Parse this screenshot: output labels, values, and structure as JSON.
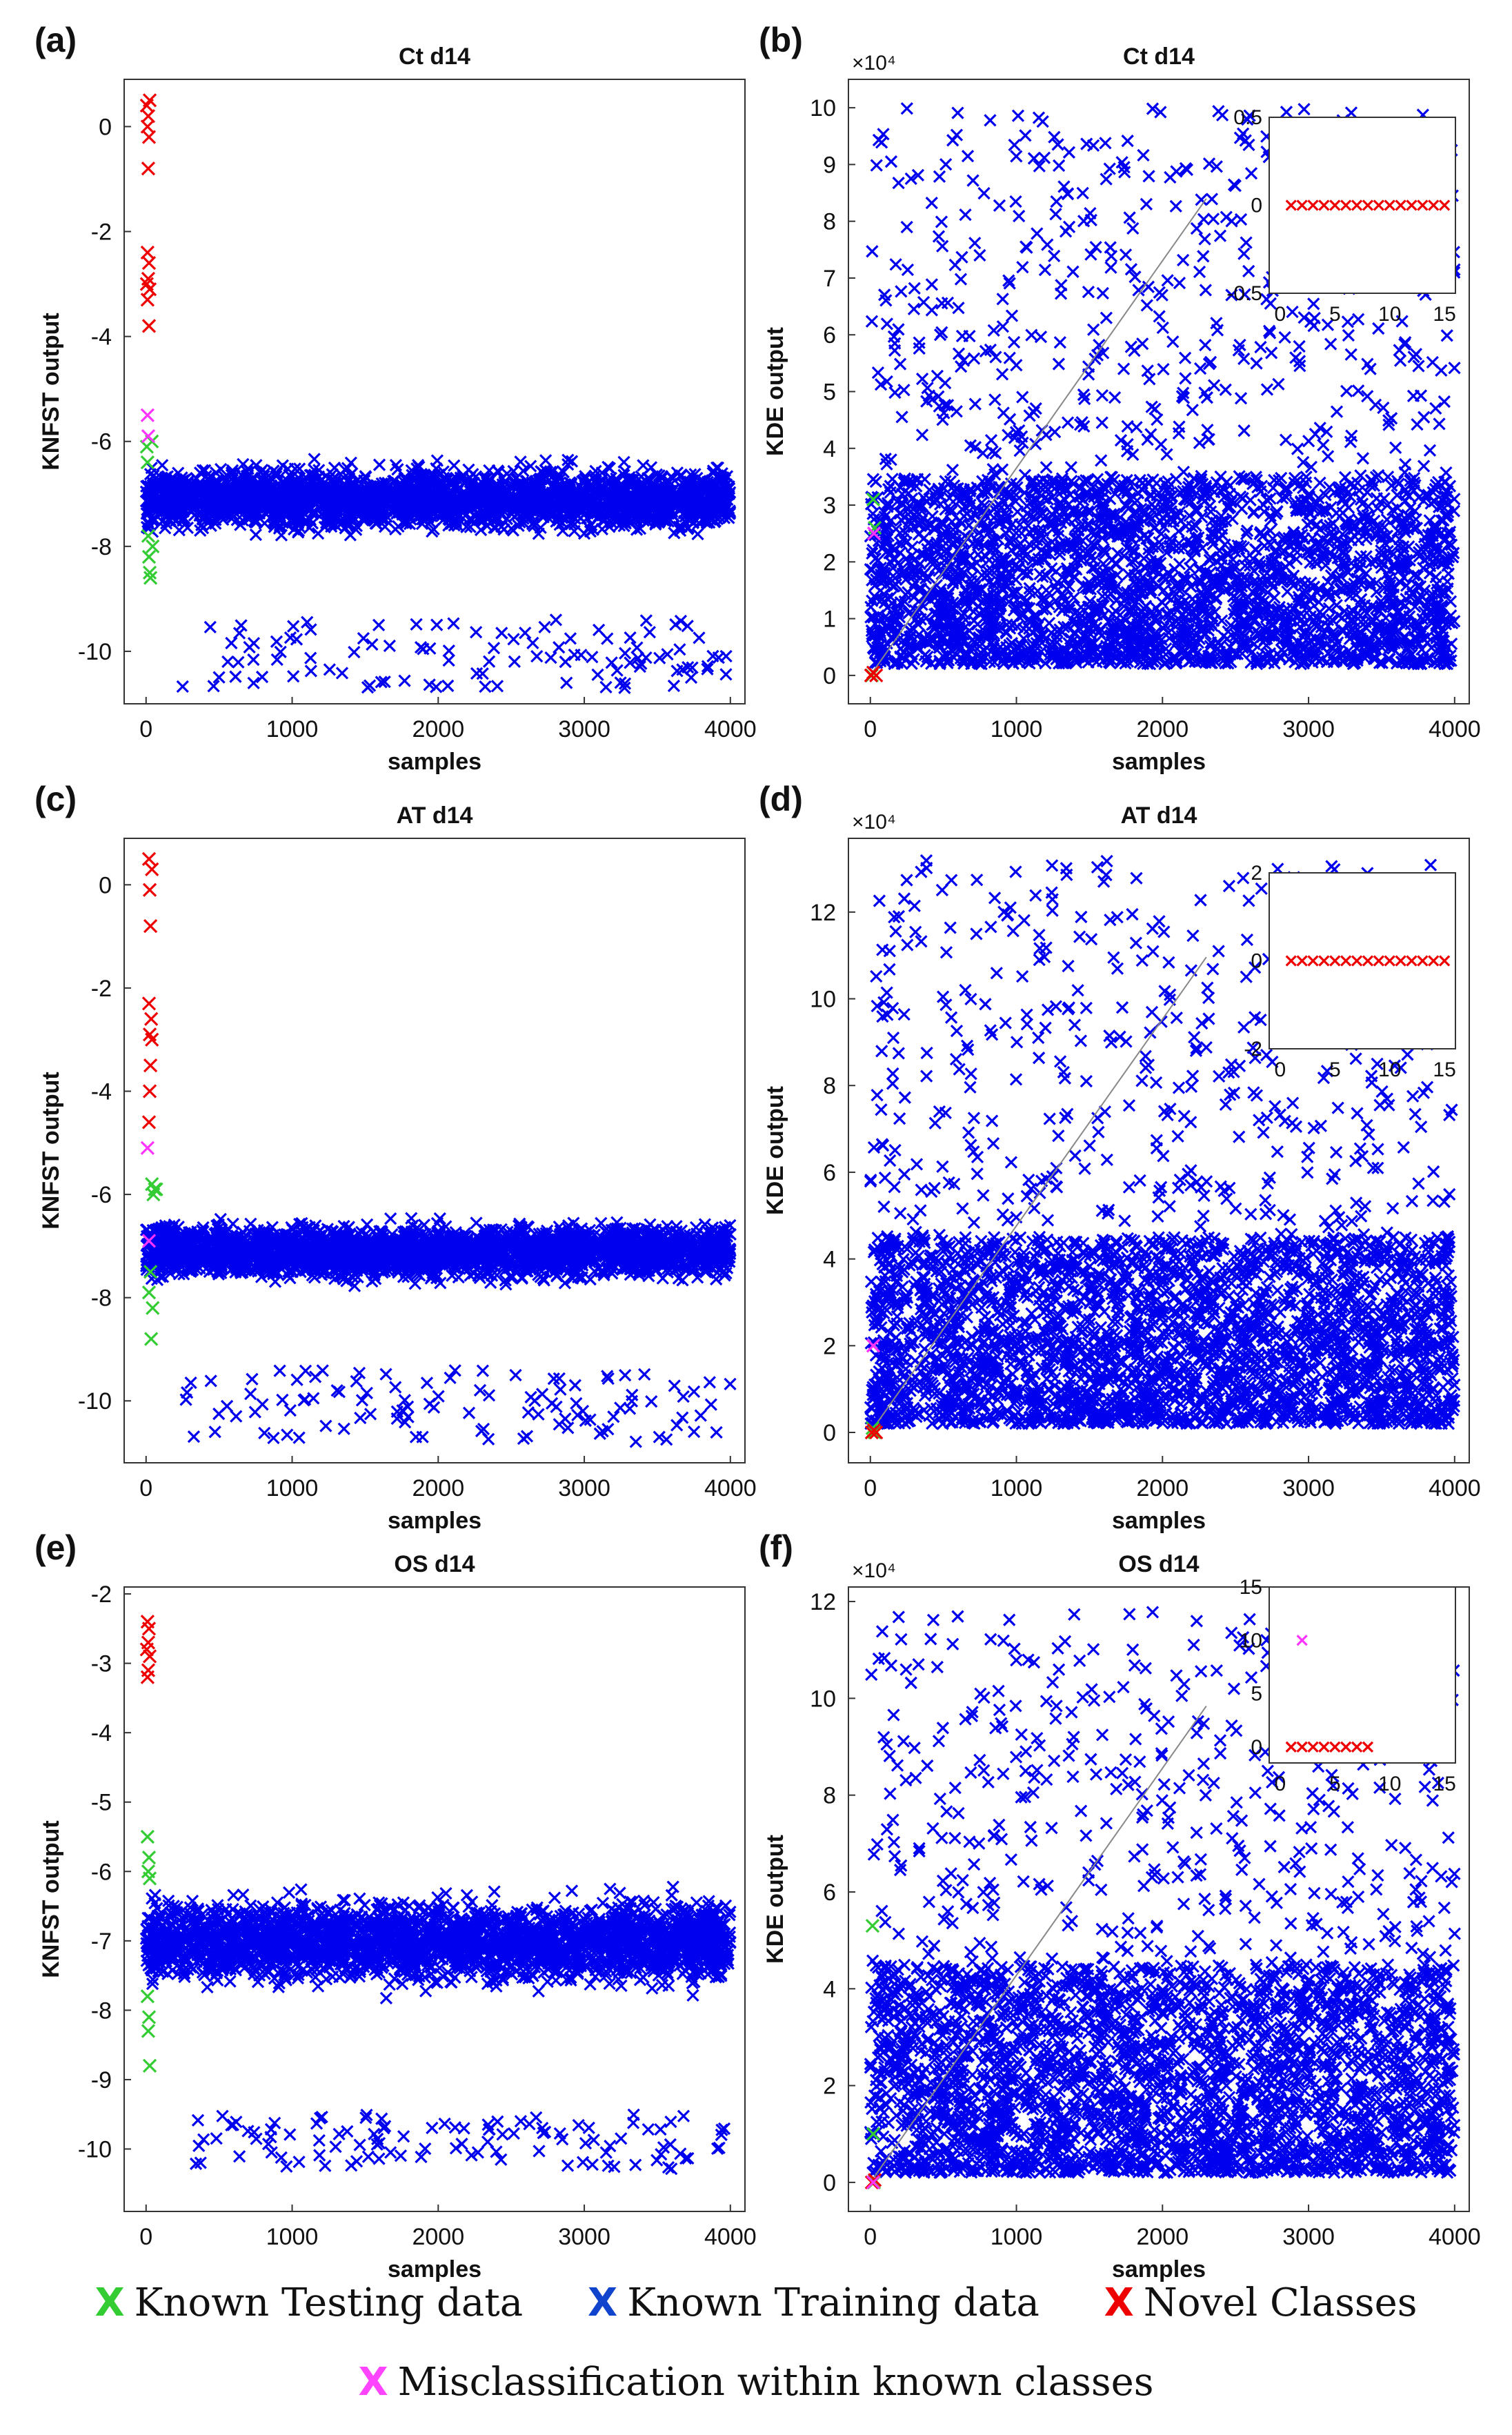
{
  "colors": {
    "known_testing": "#33cc33",
    "known_training": "#0000ee",
    "novel": "#ee0000",
    "misclass": "#ff33ff"
  },
  "legend": {
    "marker": "X",
    "known_testing": "Known Testing data",
    "known_training": "Known Training data",
    "novel": "Novel Classes",
    "misclass": "Misclassification within known classes"
  },
  "chart_data": [
    {
      "panel": "(a)",
      "type": "scatter",
      "title": "Ct d14",
      "xlabel": "samples",
      "ylabel": "KNFST output",
      "xlim": [
        -150,
        4100
      ],
      "ylim": [
        -11,
        0.9
      ],
      "xticks": [
        "0",
        "1000",
        "2000",
        "3000",
        "4000"
      ],
      "yticks": [
        "-10",
        "-8",
        "-6",
        "-4",
        "-2",
        "0"
      ],
      "series": [
        {
          "name": "Known Training data",
          "x_range": [
            0,
            4000
          ],
          "band": [
            -8.0,
            -6.0
          ],
          "center": -7.1,
          "outliers_range": [
            -10.7,
            -9.4
          ]
        },
        {
          "name": "Known Testing data",
          "points": [
            [
              5,
              -6.1
            ],
            [
              10,
              -6.4
            ],
            [
              15,
              -7.8
            ],
            [
              20,
              -8.2
            ],
            [
              25,
              -8.5
            ],
            [
              30,
              -8.6
            ],
            [
              40,
              -6.0
            ],
            [
              45,
              -8.0
            ]
          ]
        },
        {
          "name": "Novel Classes",
          "points": [
            [
              5,
              0.4
            ],
            [
              15,
              0.2
            ],
            [
              25,
              0.5
            ],
            [
              10,
              0.0
            ],
            [
              20,
              -0.2
            ],
            [
              15,
              -0.8
            ],
            [
              10,
              -2.4
            ],
            [
              20,
              -2.6
            ],
            [
              15,
              -2.9
            ],
            [
              5,
              -3.0
            ],
            [
              25,
              -3.1
            ],
            [
              10,
              -3.3
            ],
            [
              20,
              -3.8
            ]
          ]
        },
        {
          "name": "Misclassification within known classes",
          "points": [
            [
              10,
              -5.5
            ],
            [
              15,
              -5.9
            ]
          ]
        }
      ]
    },
    {
      "panel": "(b)",
      "type": "scatter",
      "title": "Ct d14",
      "xlabel": "samples",
      "ylabel": "KDE output",
      "exponent": "×10⁴",
      "xlim": [
        -150,
        4100
      ],
      "ylim": [
        -0.5,
        10.5
      ],
      "xticks": [
        "0",
        "1000",
        "2000",
        "3000",
        "4000"
      ],
      "yticks": [
        "0",
        "1",
        "2",
        "3",
        "4",
        "5",
        "6",
        "7",
        "8",
        "9",
        "10"
      ],
      "series": [
        {
          "name": "Known Training data",
          "x_range": [
            0,
            4000
          ],
          "y_range": [
            0.2,
            10
          ],
          "density_max_below": 3.5
        },
        {
          "name": "Known Testing data",
          "points": [
            [
              10,
              0.0
            ],
            [
              20,
              3.1
            ],
            [
              30,
              2.6
            ]
          ]
        },
        {
          "name": "Novel Classes",
          "points": [
            [
              5,
              0.0
            ],
            [
              20,
              0.05
            ],
            [
              40,
              0.0
            ]
          ]
        },
        {
          "name": "Misclassification within known classes",
          "points": [
            [
              25,
              2.5
            ]
          ]
        }
      ],
      "inset": {
        "xlim": [
          -1,
          16
        ],
        "ylim": [
          -0.5,
          0.5
        ],
        "xticks": [
          "0",
          "5",
          "10",
          "15"
        ],
        "yticks": [
          "-0.5",
          "0",
          "0.5"
        ],
        "novel_points_x": [
          1,
          2,
          3,
          4,
          5,
          6,
          7,
          8,
          9,
          10,
          11,
          12,
          13,
          14,
          15
        ],
        "novel_points_y": 0
      }
    },
    {
      "panel": "(c)",
      "type": "scatter",
      "title": "AT d14",
      "xlabel": "samples",
      "ylabel": "KNFST output",
      "xlim": [
        -150,
        4100
      ],
      "ylim": [
        -11.2,
        0.9
      ],
      "xticks": [
        "0",
        "1000",
        "2000",
        "3000",
        "4000"
      ],
      "yticks": [
        "-10",
        "-8",
        "-6",
        "-4",
        "-2",
        "0"
      ],
      "series": [
        {
          "name": "Known Training data",
          "x_range": [
            0,
            4000
          ],
          "band": [
            -7.9,
            -6.1
          ],
          "center": -7.1,
          "outliers_range": [
            -10.8,
            -9.4
          ]
        },
        {
          "name": "Known Testing data",
          "points": [
            [
              40,
              -5.8
            ],
            [
              50,
              -6.0
            ],
            [
              60,
              -5.9
            ],
            [
              30,
              -7.5
            ],
            [
              20,
              -7.9
            ],
            [
              35,
              -8.8
            ],
            [
              45,
              -8.2
            ],
            [
              70,
              -5.9
            ]
          ]
        },
        {
          "name": "Novel Classes",
          "points": [
            [
              20,
              0.5
            ],
            [
              40,
              0.3
            ],
            [
              25,
              -0.1
            ],
            [
              30,
              -0.8
            ],
            [
              20,
              -2.3
            ],
            [
              35,
              -2.6
            ],
            [
              25,
              -2.9
            ],
            [
              40,
              -3.0
            ],
            [
              30,
              -3.5
            ],
            [
              25,
              -4.0
            ],
            [
              20,
              -4.6
            ]
          ]
        },
        {
          "name": "Misclassification within known classes",
          "points": [
            [
              10,
              -5.1
            ],
            [
              20,
              -6.9
            ]
          ]
        }
      ]
    },
    {
      "panel": "(d)",
      "type": "scatter",
      "title": "AT d14",
      "xlabel": "samples",
      "ylabel": "KDE output",
      "exponent": "×10⁴",
      "xlim": [
        -150,
        4100
      ],
      "ylim": [
        -0.7,
        13.7
      ],
      "xticks": [
        "0",
        "1000",
        "2000",
        "3000",
        "4000"
      ],
      "yticks": [
        "0",
        "2",
        "4",
        "6",
        "8",
        "10",
        "12"
      ],
      "series": [
        {
          "name": "Known Training data",
          "x_range": [
            0,
            4000
          ],
          "y_range": [
            0.2,
            13.2
          ],
          "density_max_below": 4.5
        },
        {
          "name": "Known Testing data",
          "points": [
            [
              15,
              0.1
            ],
            [
              30,
              0.0
            ]
          ]
        },
        {
          "name": "Novel Classes",
          "points": [
            [
              10,
              0.0
            ],
            [
              25,
              0.05
            ],
            [
              40,
              0.0
            ]
          ]
        },
        {
          "name": "Misclassification within known classes",
          "points": [
            [
              20,
              2.0
            ]
          ]
        }
      ],
      "inset": {
        "xlim": [
          -1,
          16
        ],
        "ylim": [
          -2,
          2
        ],
        "xticks": [
          "0",
          "5",
          "10",
          "15"
        ],
        "yticks": [
          "-2",
          "0",
          "2"
        ],
        "novel_points_x": [
          1,
          2,
          3,
          4,
          5,
          6,
          7,
          8,
          9,
          10,
          11,
          12,
          13,
          14,
          15
        ],
        "novel_points_y": 0
      }
    },
    {
      "panel": "(e)",
      "type": "scatter",
      "title": "OS d14",
      "xlabel": "samples",
      "ylabel": "KNFST output",
      "xlim": [
        -150,
        4100
      ],
      "ylim": [
        -10.9,
        -1.9
      ],
      "xticks": [
        "0",
        "1000",
        "2000",
        "3000",
        "4000"
      ],
      "yticks": [
        "-10",
        "-9",
        "-8",
        "-7",
        "-6",
        "-5",
        "-4",
        "-3",
        "-2"
      ],
      "series": [
        {
          "name": "Known Training data",
          "x_range": [
            0,
            4000
          ],
          "band": [
            -8.0,
            -6.0
          ],
          "center": -7.0,
          "outliers_range": [
            -10.3,
            -9.5
          ]
        },
        {
          "name": "Known Testing data",
          "points": [
            [
              10,
              -5.5
            ],
            [
              20,
              -5.8
            ],
            [
              15,
              -6.0
            ],
            [
              25,
              -6.1
            ],
            [
              10,
              -7.8
            ],
            [
              20,
              -8.1
            ],
            [
              15,
              -8.3
            ],
            [
              25,
              -8.8
            ]
          ]
        },
        {
          "name": "Novel Classes",
          "points": [
            [
              10,
              -2.4
            ],
            [
              20,
              -2.5
            ],
            [
              15,
              -2.7
            ],
            [
              5,
              -2.8
            ],
            [
              25,
              -2.9
            ],
            [
              15,
              -3.1
            ],
            [
              10,
              -3.2
            ]
          ]
        },
        {
          "name": "Misclassification within known classes",
          "points": []
        }
      ]
    },
    {
      "panel": "(f)",
      "type": "scatter",
      "title": "OS d14",
      "xlabel": "samples",
      "ylabel": "KDE output",
      "exponent": "×10⁴",
      "xlim": [
        -150,
        4100
      ],
      "ylim": [
        -0.6,
        12.3
      ],
      "xticks": [
        "0",
        "1000",
        "2000",
        "3000",
        "4000"
      ],
      "yticks": [
        "0",
        "2",
        "4",
        "6",
        "8",
        "10",
        "12"
      ],
      "series": [
        {
          "name": "Known Training data",
          "x_range": [
            0,
            4000
          ],
          "y_range": [
            0.2,
            11.8
          ],
          "density_max_below": 4.5
        },
        {
          "name": "Known Testing data",
          "points": [
            [
              15,
              5.3
            ],
            [
              20,
              1.0
            ],
            [
              25,
              0.0
            ]
          ]
        },
        {
          "name": "Novel Classes",
          "points": [
            [
              10,
              0.0
            ],
            [
              30,
              0.05
            ]
          ]
        },
        {
          "name": "Misclassification within known classes",
          "points": [
            [
              20,
              0.0
            ]
          ]
        }
      ],
      "inset": {
        "xlim": [
          -1,
          16
        ],
        "ylim": [
          -1.5,
          15
        ],
        "xticks": [
          "0",
          "5",
          "10",
          "15"
        ],
        "yticks": [
          "0",
          "5",
          "10",
          "15"
        ],
        "novel_points_x": [
          1,
          2,
          3,
          4,
          5,
          6,
          7,
          8
        ],
        "novel_points_y": 0,
        "misclass_points": [
          [
            2,
            10
          ]
        ]
      }
    }
  ]
}
